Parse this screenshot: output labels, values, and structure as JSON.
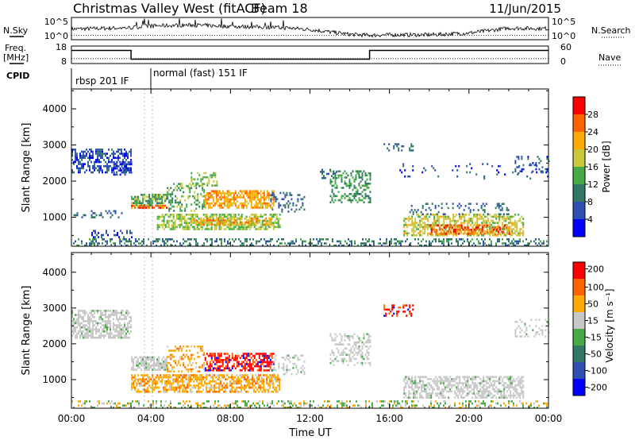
{
  "header": {
    "title": "Christmas Valley West (fitACF)",
    "beam": "Beam 18",
    "date": "11/Jun/2015"
  },
  "top_panels": {
    "nsky_label": "N.Sky",
    "nsky_ticks": [
      "10^5",
      "10^0"
    ],
    "nsearch_label": "N.Search",
    "freq_label_1": "Freq.",
    "freq_label_2": "[MHz]",
    "freq_ticks": [
      "18",
      "8"
    ],
    "nave_ticks": [
      "60",
      "0"
    ],
    "nave_label": "Nave",
    "cpid_label": "CPID",
    "cpid_segments": [
      "rbsp 201 IF",
      "normal (fast) 151 IF"
    ]
  },
  "colors": {
    "power": [
      "#0000ff",
      "#2d50b4",
      "#327864",
      "#46aa46",
      "#c8c83c",
      "#ffaa00",
      "#ff6400",
      "#ff0000"
    ],
    "velocity": [
      "#0000ff",
      "#2d50b4",
      "#327864",
      "#46aa46",
      "#c8c8c8",
      "#ffaa00",
      "#ff6400",
      "#ff0000"
    ]
  },
  "chart_data": [
    {
      "type": "line",
      "name": "N.Sky / N.Search",
      "x_hours": [
        0,
        2,
        3,
        4,
        6,
        8,
        10,
        11,
        12,
        14,
        15,
        16,
        18,
        20,
        22,
        24
      ],
      "nsky_log10": [
        2.4,
        2.6,
        2.7,
        3.1,
        3.3,
        3.0,
        2.8,
        2.6,
        2.3,
        1.2,
        1.0,
        1.1,
        1.1,
        1.5,
        2.6,
        2.5
      ],
      "ylim_log10": [
        0,
        5
      ]
    },
    {
      "type": "line",
      "name": "Freq / Nave",
      "x_hours": [
        0,
        3,
        3,
        15,
        15,
        24
      ],
      "freq_mhz": [
        15.5,
        15.5,
        10.5,
        10.5,
        15.5,
        15.5
      ],
      "nave": [
        17,
        17,
        17,
        17,
        17,
        17
      ],
      "freq_ylim": [
        8,
        18
      ],
      "nave_ylim": [
        0,
        60
      ]
    },
    {
      "type": "heatmap",
      "quantity": "power",
      "xlabel": "",
      "ylabel": "Slant Range [km]",
      "xlim": [
        0,
        24
      ],
      "ylim": [
        200,
        4550
      ],
      "yticks": [
        1000,
        2000,
        3000,
        4000
      ],
      "colorbar_label": "Power [dB]",
      "colorbar_ticks": [
        "28",
        "24",
        "20",
        "16",
        "12",
        "8",
        "4"
      ],
      "clim": [
        0,
        32
      ],
      "regions": [
        {
          "t0": 0.0,
          "t1": 3.0,
          "r0": 2250,
          "r1": 2900,
          "v": 6,
          "d": 0.55
        },
        {
          "t0": 2.1,
          "t1": 3.0,
          "r0": 2200,
          "r1": 2550,
          "v": 6,
          "d": 0.6
        },
        {
          "t0": 0.1,
          "t1": 2.5,
          "r0": 1000,
          "r1": 1200,
          "v": 8,
          "d": 0.25
        },
        {
          "t0": 3.0,
          "t1": 4.8,
          "r0": 1250,
          "r1": 1350,
          "v": 26,
          "d": 0.85
        },
        {
          "t0": 3.0,
          "t1": 4.8,
          "r0": 1350,
          "r1": 1650,
          "v": 14,
          "d": 0.65
        },
        {
          "t0": 4.8,
          "t1": 6.7,
          "r0": 1200,
          "r1": 1950,
          "v": 14,
          "d": 0.35
        },
        {
          "t0": 4.3,
          "t1": 10.5,
          "r0": 650,
          "r1": 1100,
          "v": 16,
          "d": 0.6
        },
        {
          "t0": 6.0,
          "t1": 10.0,
          "r0": 800,
          "r1": 1000,
          "v": 22,
          "d": 0.55
        },
        {
          "t0": 6.7,
          "t1": 10.2,
          "r0": 1250,
          "r1": 1750,
          "v": 22,
          "d": 0.65
        },
        {
          "t0": 6.0,
          "t1": 7.3,
          "r0": 1900,
          "r1": 2250,
          "v": 16,
          "d": 0.4
        },
        {
          "t0": 10.0,
          "t1": 11.7,
          "r0": 1150,
          "r1": 1700,
          "v": 8,
          "d": 0.3
        },
        {
          "t0": 1.0,
          "t1": 3.0,
          "r0": 450,
          "r1": 650,
          "v": 6,
          "d": 0.3
        },
        {
          "t0": 13.0,
          "t1": 15.0,
          "r0": 1400,
          "r1": 2300,
          "v": 12,
          "d": 0.4
        },
        {
          "t0": 12.5,
          "t1": 13.3,
          "r0": 2100,
          "r1": 2400,
          "v": 8,
          "d": 0.3
        },
        {
          "t0": 15.7,
          "t1": 17.2,
          "r0": 2850,
          "r1": 3050,
          "v": 8,
          "d": 0.3
        },
        {
          "t0": 16.7,
          "t1": 22.7,
          "r0": 500,
          "r1": 1100,
          "v": 18,
          "d": 0.55
        },
        {
          "t0": 18.0,
          "t1": 22.0,
          "r0": 550,
          "r1": 800,
          "v": 26,
          "d": 0.55
        },
        {
          "t0": 17.0,
          "t1": 22.0,
          "r0": 1100,
          "r1": 1400,
          "v": 8,
          "d": 0.2
        },
        {
          "t0": 22.3,
          "t1": 24.0,
          "r0": 2200,
          "r1": 2700,
          "v": 6,
          "d": 0.2
        },
        {
          "t0": 16.5,
          "t1": 24.0,
          "r0": 2100,
          "r1": 2500,
          "v": 6,
          "d": 0.08
        },
        {
          "t0": 0.0,
          "t1": 24.0,
          "r0": 200,
          "r1": 420,
          "v": 10,
          "d": 0.35
        }
      ]
    },
    {
      "type": "heatmap",
      "quantity": "velocity",
      "xlabel": "Time UT",
      "ylabel": "Slant Range [km]",
      "xlim": [
        0,
        24
      ],
      "ylim": [
        200,
        4550
      ],
      "yticks": [
        1000,
        2000,
        3000,
        4000
      ],
      "xticks": [
        "00:00",
        "04:00",
        "08:00",
        "12:00",
        "16:00",
        "20:00",
        "00:00"
      ],
      "colorbar_label": "Velocity [m s⁻¹]",
      "colorbar_ticks": [
        "200",
        "100",
        "50",
        "15",
        "-15",
        "-50",
        "-100",
        "-200"
      ],
      "regions": [
        {
          "t0": 0.0,
          "t1": 3.0,
          "r0": 2150,
          "r1": 2950,
          "v": "gray",
          "d": 0.6
        },
        {
          "t0": 3.0,
          "t1": 4.8,
          "r0": 1250,
          "r1": 1650,
          "v": "gray",
          "d": 0.8
        },
        {
          "t0": 3.0,
          "t1": 10.5,
          "r0": 650,
          "r1": 1150,
          "v": "orange",
          "d": 0.6
        },
        {
          "t0": 6.7,
          "t1": 10.2,
          "r0": 1250,
          "r1": 1750,
          "v": "red",
          "d": 0.6
        },
        {
          "t0": 4.8,
          "t1": 6.7,
          "r0": 1200,
          "r1": 1950,
          "v": "orange",
          "d": 0.35
        },
        {
          "t0": 10.0,
          "t1": 11.7,
          "r0": 1150,
          "r1": 1700,
          "v": "gray",
          "d": 0.35
        },
        {
          "t0": 13.0,
          "t1": 15.0,
          "r0": 1400,
          "r1": 2300,
          "v": "gray",
          "d": 0.4
        },
        {
          "t0": 15.7,
          "t1": 17.2,
          "r0": 2800,
          "r1": 3100,
          "v": "red",
          "d": 0.35
        },
        {
          "t0": 16.7,
          "t1": 22.7,
          "r0": 500,
          "r1": 1100,
          "v": "gray",
          "d": 0.6
        },
        {
          "t0": 22.3,
          "t1": 24.0,
          "r0": 2200,
          "r1": 2700,
          "v": "gray",
          "d": 0.2
        },
        {
          "t0": 0.0,
          "t1": 24.0,
          "r0": 200,
          "r1": 420,
          "v": "green",
          "d": 0.3
        }
      ]
    }
  ]
}
